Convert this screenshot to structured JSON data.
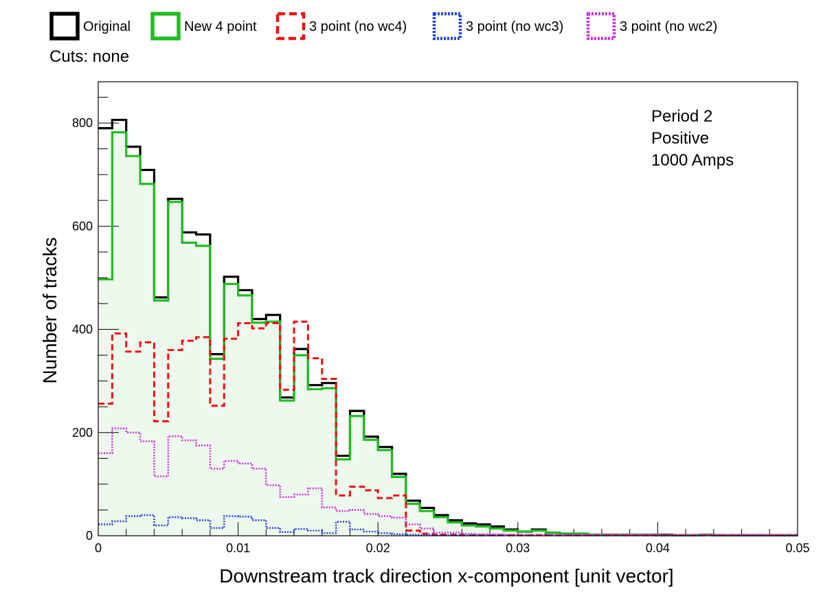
{
  "chart_data": {
    "type": "line",
    "subtype": "step-histogram",
    "cuts_label": "Cuts: none",
    "xlabel": "Downstream track direction x-component [unit vector]",
    "ylabel": "Number of tracks",
    "xlim": [
      0,
      0.05
    ],
    "ylim": [
      0,
      880
    ],
    "x_ticks": [
      "0",
      "0.01",
      "0.02",
      "0.03",
      "0.04",
      "0.05"
    ],
    "y_ticks": [
      "0",
      "200",
      "400",
      "600",
      "800"
    ],
    "annotation": [
      "Period 2",
      "Positive",
      "1000 Amps"
    ],
    "legend_position": "top-outside",
    "bin_edges": [
      0,
      0.001,
      0.002,
      0.003,
      0.004,
      0.005,
      0.006,
      0.007,
      0.008,
      0.009,
      0.01,
      0.011,
      0.012,
      0.013,
      0.014,
      0.015,
      0.016,
      0.017,
      0.018,
      0.019,
      0.02,
      0.021,
      0.022,
      0.023,
      0.024,
      0.025,
      0.026,
      0.027,
      0.028,
      0.029,
      0.03,
      0.031,
      0.032,
      0.033,
      0.034,
      0.035,
      0.036,
      0.037,
      0.038,
      0.039,
      0.04,
      0.041,
      0.042,
      0.043,
      0.044,
      0.045,
      0.046,
      0.047,
      0.048,
      0.049,
      0.05
    ],
    "series": [
      {
        "name": "Original",
        "color": "#000000",
        "dash": "solid",
        "values": [
          790,
          806,
          754,
          709,
          462,
          653,
          588,
          584,
          352,
          502,
          476,
          420,
          428,
          268,
          362,
          292,
          296,
          155,
          242,
          192,
          172,
          120,
          68,
          54,
          40,
          30,
          24,
          22,
          18,
          12,
          8,
          12,
          6,
          4,
          4,
          2,
          2,
          2,
          2,
          2,
          2,
          1,
          1,
          2,
          1,
          1,
          1,
          1,
          1,
          1
        ]
      },
      {
        "name": "New 4 point",
        "color": "#22bb22",
        "fill": "#eef9ee",
        "dash": "solid",
        "values": [
          497,
          782,
          736,
          682,
          456,
          647,
          568,
          562,
          343,
          488,
          466,
          413,
          415,
          262,
          350,
          284,
          286,
          148,
          232,
          186,
          166,
          114,
          62,
          48,
          36,
          26,
          20,
          18,
          14,
          10,
          8,
          10,
          6,
          4,
          4,
          2,
          2,
          2,
          2,
          2,
          1,
          1,
          1,
          2,
          1,
          1,
          1,
          1,
          1,
          1
        ]
      },
      {
        "name": "3 point (no wc4)",
        "color": "#ee1111",
        "dash": "dashed",
        "values": [
          256,
          392,
          357,
          375,
          222,
          360,
          378,
          385,
          252,
          382,
          412,
          402,
          412,
          283,
          415,
          344,
          304,
          78,
          95,
          88,
          73,
          78,
          10,
          4,
          2,
          2,
          1,
          1,
          1,
          1,
          1,
          1,
          1,
          1,
          1,
          1,
          1,
          1,
          1,
          1,
          1,
          1,
          1,
          1,
          1,
          1,
          1,
          1,
          1,
          1
        ]
      },
      {
        "name": "3 point (no wc3)",
        "color": "#2244dd",
        "dash": "dotted",
        "values": [
          22,
          28,
          38,
          40,
          20,
          36,
          34,
          30,
          15,
          38,
          37,
          30,
          15,
          7,
          13,
          10,
          5,
          27,
          12,
          8,
          5,
          3,
          2,
          2,
          1,
          1,
          1,
          1,
          1,
          1,
          1,
          1,
          1,
          1,
          1,
          1,
          1,
          1,
          1,
          1,
          1,
          1,
          1,
          1,
          1,
          1,
          1,
          1,
          1,
          1
        ]
      },
      {
        "name": "3 point (no wc2)",
        "color": "#cc33dd",
        "dash": "dotted",
        "values": [
          160,
          208,
          200,
          183,
          115,
          193,
          185,
          175,
          130,
          145,
          140,
          130,
          98,
          75,
          80,
          92,
          55,
          48,
          50,
          42,
          38,
          35,
          22,
          14,
          6,
          6,
          4,
          3,
          3,
          2,
          2,
          2,
          2,
          2,
          2,
          2,
          2,
          2,
          2,
          2,
          2,
          2,
          2,
          2,
          2,
          2,
          2,
          2,
          2,
          2
        ]
      }
    ]
  }
}
